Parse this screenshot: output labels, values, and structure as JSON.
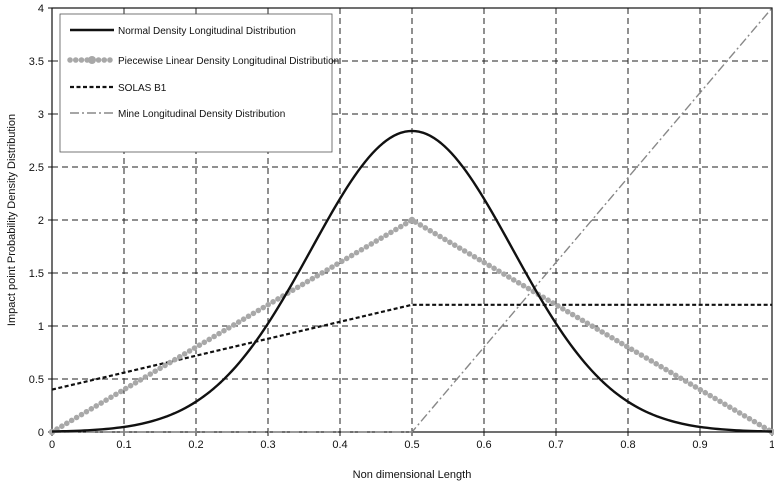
{
  "chart_data": {
    "type": "line",
    "title": "",
    "xlabel": "Non dimensional Length",
    "ylabel": "Impact point Probability Density Distribution",
    "xlim": [
      0,
      1
    ],
    "ylim": [
      0,
      4
    ],
    "x_ticks": [
      "0",
      "0.1",
      "0.2",
      "0.3",
      "0.4",
      "0.5",
      "0.6",
      "0.7",
      "0.8",
      "0.9",
      "1"
    ],
    "y_ticks": [
      "0",
      "0.5",
      "1",
      "1.5",
      "2",
      "2.5",
      "3",
      "3.5",
      "4"
    ],
    "grid": true,
    "legend_position": "top-left",
    "series": [
      {
        "name": "Normal Density Longitudinal Distribution",
        "color": "#111111",
        "style": "solid",
        "x": [
          0,
          0.05,
          0.1,
          0.15,
          0.2,
          0.25,
          0.3,
          0.35,
          0.4,
          0.45,
          0.5,
          0.55,
          0.6,
          0.65,
          0.7,
          0.75,
          0.8,
          0.85,
          0.9,
          0.95,
          1
        ],
        "y": [
          0,
          0.01,
          0.04,
          0.12,
          0.27,
          0.54,
          0.93,
          1.44,
          2.0,
          2.55,
          2.84,
          2.55,
          2.0,
          1.44,
          0.93,
          0.54,
          0.27,
          0.12,
          0.04,
          0.01,
          0
        ]
      },
      {
        "name": "Piecewise Linear Density Longitudinal Distribution",
        "color": "#a8a8a8",
        "style": "dotted-thick",
        "x": [
          0,
          0.5,
          1
        ],
        "y": [
          0,
          2,
          0
        ]
      },
      {
        "name": "SOLAS B1",
        "color": "#111111",
        "style": "dashed",
        "x": [
          0,
          0.5,
          1
        ],
        "y": [
          0.4,
          1.2,
          1.2
        ]
      },
      {
        "name": "Mine Longitudinal Density Distribution",
        "color": "#888888",
        "style": "dash-dot",
        "x": [
          0,
          0.5,
          1
        ],
        "y": [
          0,
          0,
          4
        ]
      }
    ]
  }
}
